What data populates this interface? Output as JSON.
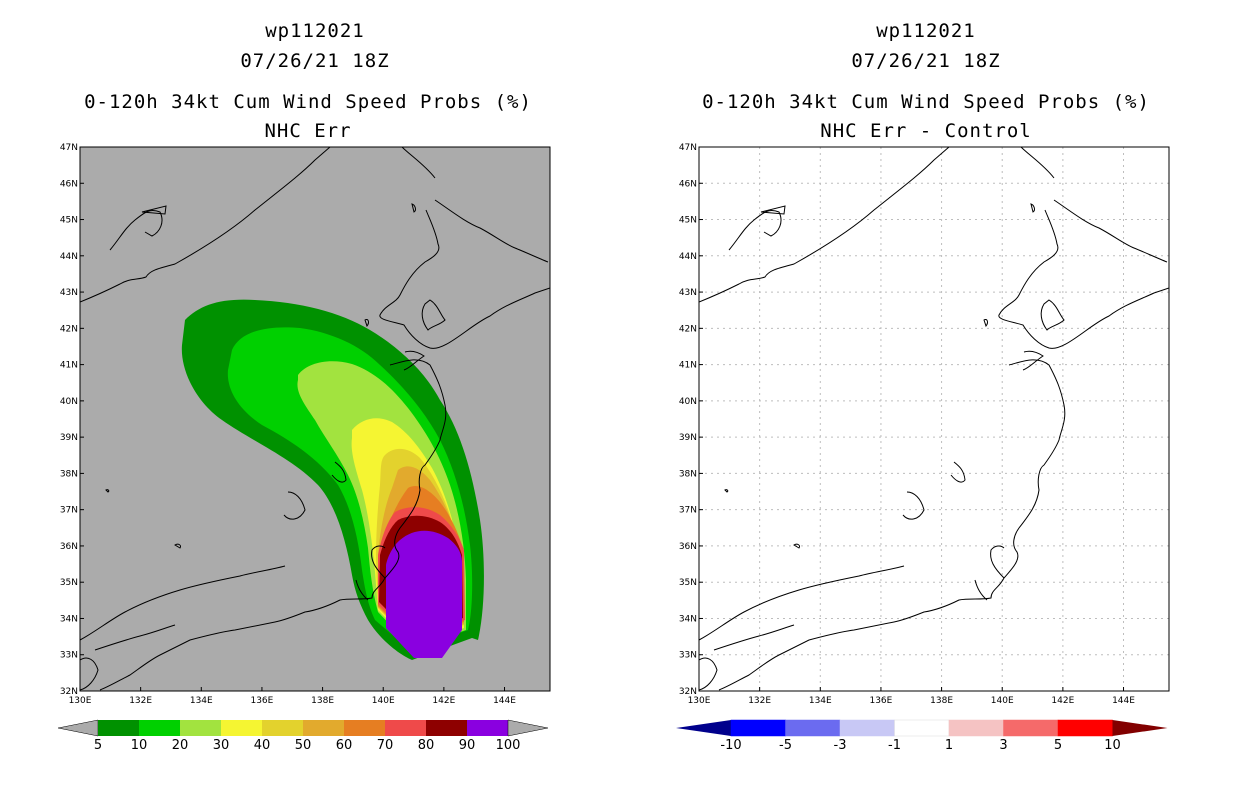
{
  "colors": {
    "land_sea_bg": "#ababab",
    "prob_levels": [
      "#009100",
      "#00d000",
      "#a2e33f",
      "#f5f532",
      "#e3d22d",
      "#e2aa2d",
      "#e67e22",
      "#ef4a4a",
      "#8e0000",
      "#8a00e0"
    ],
    "diff_levels": [
      "#00008c",
      "#0000ff",
      "#6b6bf0",
      "#c8c8f5",
      "#ffffff",
      "#f5c3c3",
      "#f56a6a",
      "#ff0000",
      "#820000"
    ]
  },
  "chart_data": [
    {
      "type": "heatmap",
      "storm_id": "wp112021",
      "datetime": "07/26/21 18Z",
      "title": "0-120h 34kt Cum Wind Speed Probs (%)",
      "subtitle": "NHC Err",
      "x_ticks": [
        "130E",
        "132E",
        "134E",
        "136E",
        "138E",
        "140E",
        "142E",
        "144E"
      ],
      "y_ticks": [
        "32N",
        "33N",
        "34N",
        "35N",
        "36N",
        "37N",
        "38N",
        "39N",
        "40N",
        "41N",
        "42N",
        "43N",
        "44N",
        "45N",
        "46N",
        "47N"
      ],
      "xlim": [
        130,
        145.5
      ],
      "ylim": [
        32,
        47
      ],
      "colorbar_labels": [
        "5",
        "10",
        "20",
        "30",
        "40",
        "50",
        "60",
        "70",
        "80",
        "90",
        "100"
      ],
      "contour_levels": [
        5,
        10,
        20,
        30,
        40,
        50,
        60,
        70,
        80,
        90,
        100
      ]
    },
    {
      "type": "heatmap",
      "storm_id": "wp112021",
      "datetime": "07/26/21 18Z",
      "title": "0-120h 34kt Cum Wind Speed Probs (%)",
      "subtitle": "NHC Err - Control",
      "x_ticks": [
        "130E",
        "132E",
        "134E",
        "136E",
        "138E",
        "140E",
        "142E",
        "144E"
      ],
      "y_ticks": [
        "32N",
        "33N",
        "34N",
        "35N",
        "36N",
        "37N",
        "38N",
        "39N",
        "40N",
        "41N",
        "42N",
        "43N",
        "44N",
        "45N",
        "46N",
        "47N"
      ],
      "xlim": [
        130,
        145.5
      ],
      "ylim": [
        32,
        47
      ],
      "colorbar_labels": [
        "-10",
        "-5",
        "-3",
        "-1",
        "1",
        "3",
        "5",
        "10"
      ],
      "contour_levels": [
        -10,
        -5,
        -3,
        -1,
        1,
        3,
        5,
        10
      ]
    }
  ]
}
